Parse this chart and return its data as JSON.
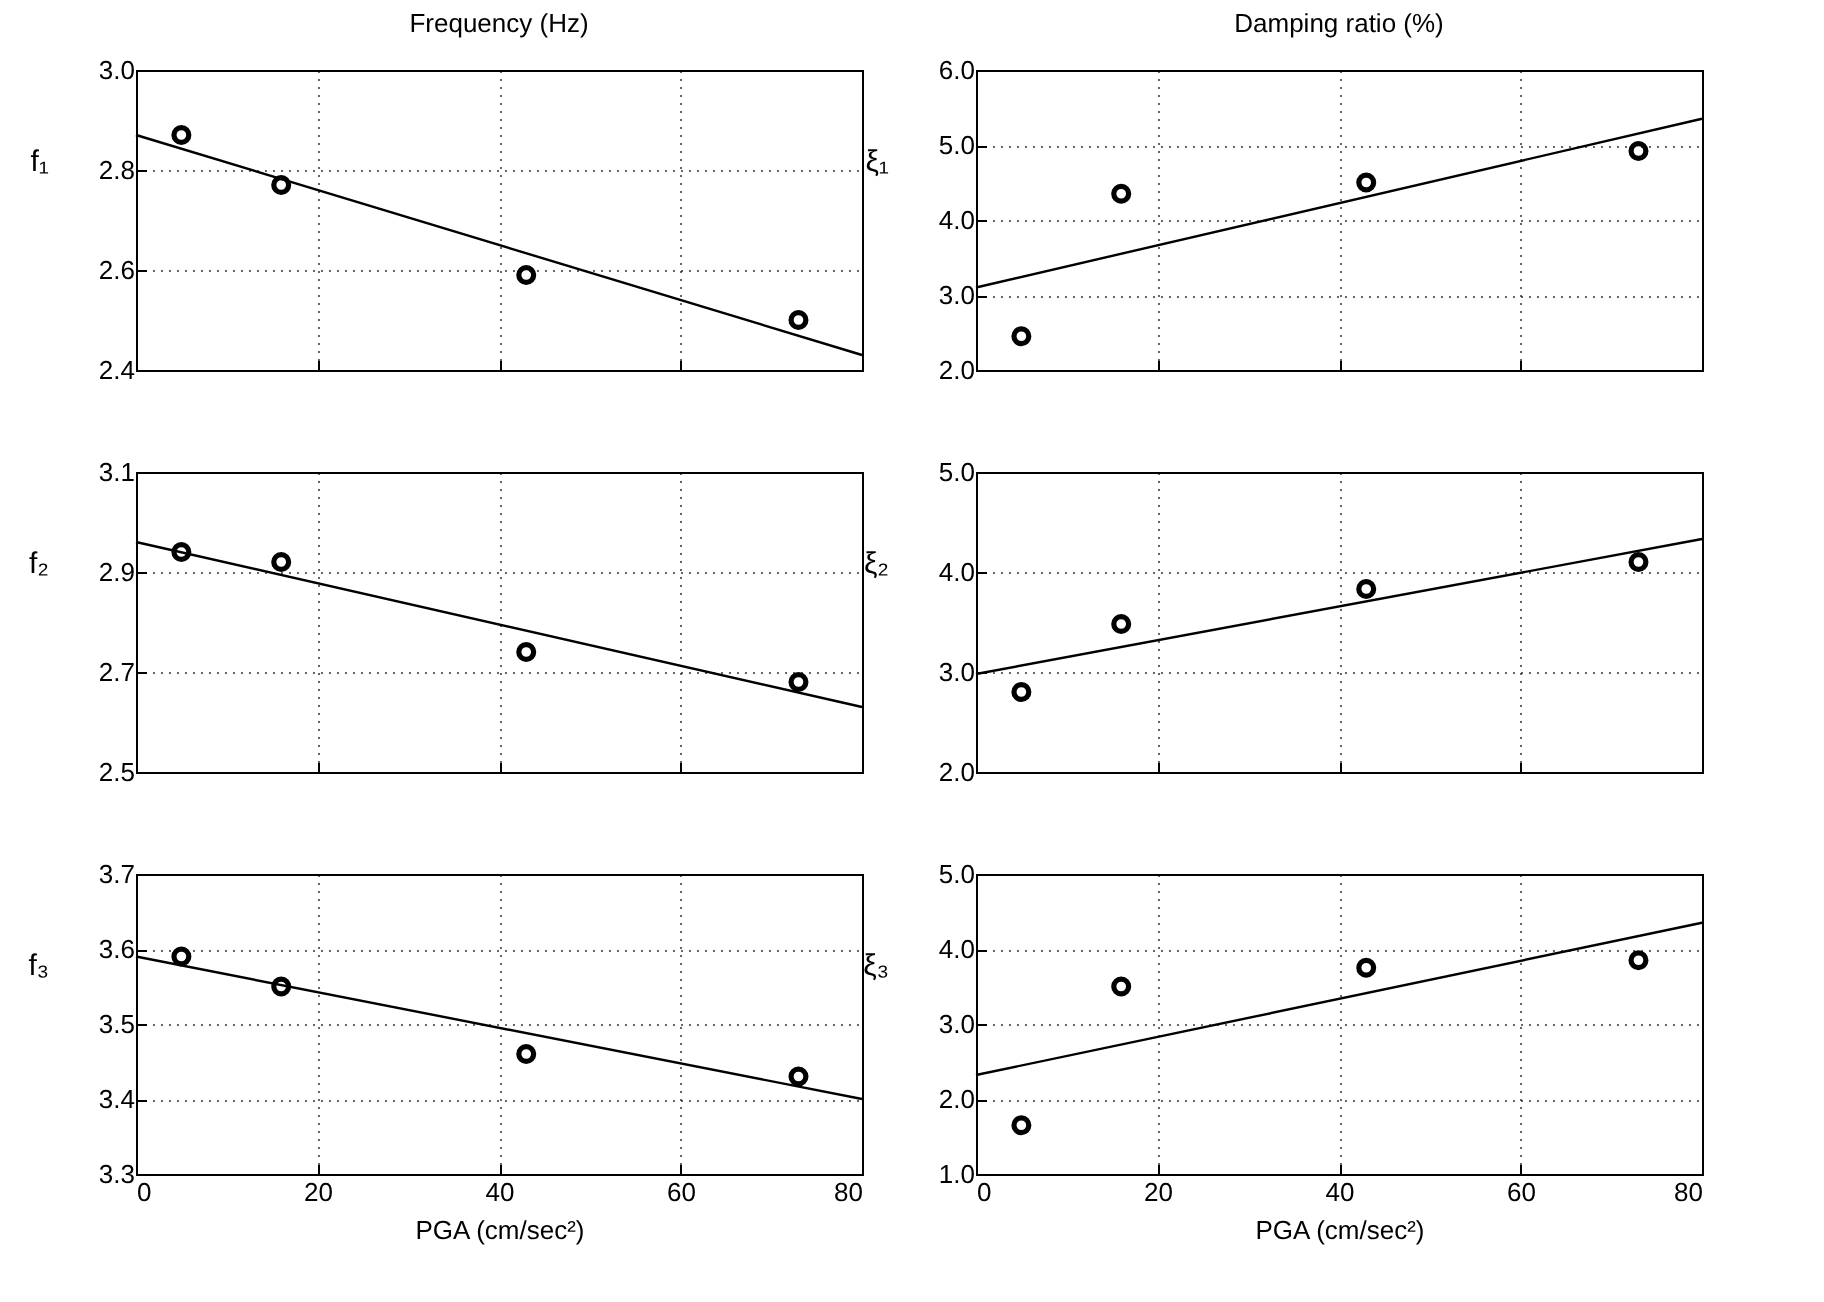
{
  "chart_data": [
    {
      "type": "scatter",
      "title": "Frequency (Hz)",
      "ylabel": "f₁",
      "xlim": [
        0,
        80
      ],
      "xticks": [
        0,
        20,
        40,
        60,
        80
      ],
      "ylim": [
        2.4,
        3.0
      ],
      "yticks": [
        2.4,
        2.6,
        2.8,
        {
          "value": 3,
          "label": "3.0"
        }
      ],
      "grid": true,
      "marker": "circle",
      "tick_labels": "y",
      "series": [
        {
          "type": "scatter",
          "color": "#000000",
          "x": [
            5,
            16,
            43,
            73
          ],
          "values": [
            2.87,
            2.77,
            2.59,
            2.5
          ]
        },
        {
          "type": "line",
          "color": "#000000",
          "marker": "none",
          "x": [
            0,
            80
          ],
          "values": [
            2.87,
            2.43
          ]
        }
      ]
    },
    {
      "type": "scatter",
      "title": "Damping ratio (%)",
      "ylabel": "ξ₁",
      "xlim": [
        0,
        80
      ],
      "xticks": [
        0,
        20,
        40,
        60,
        80
      ],
      "ylim": [
        2,
        6
      ],
      "yticks": [
        {
          "value": 2,
          "label": "2.0"
        },
        {
          "value": 3,
          "label": "3.0"
        },
        {
          "value": 4,
          "label": "4.0"
        },
        {
          "value": 5,
          "label": "5.0"
        },
        {
          "value": 6,
          "label": "6.0"
        }
      ],
      "grid": true,
      "marker": "circle",
      "tick_labels": "y",
      "series": [
        {
          "type": "scatter",
          "color": "#000000",
          "x": [
            5,
            16,
            43,
            73
          ],
          "values": [
            2.45,
            4.35,
            4.5,
            4.92
          ]
        },
        {
          "type": "line",
          "color": "#000000",
          "marker": "none",
          "x": [
            0,
            80
          ],
          "values": [
            3.1,
            5.35
          ]
        }
      ]
    },
    {
      "type": "scatter",
      "ylabel": "f₂",
      "xlim": [
        0,
        80
      ],
      "xticks": [
        0,
        20,
        40,
        60,
        80
      ],
      "ylim": [
        2.5,
        3.1
      ],
      "yticks": [
        2.5,
        2.7,
        2.9,
        3.1
      ],
      "grid": true,
      "marker": "circle",
      "tick_labels": "y",
      "series": [
        {
          "type": "scatter",
          "color": "#000000",
          "x": [
            5,
            16,
            43,
            73
          ],
          "values": [
            2.94,
            2.92,
            2.74,
            2.68
          ]
        },
        {
          "type": "line",
          "color": "#000000",
          "marker": "none",
          "x": [
            0,
            80
          ],
          "values": [
            2.96,
            2.63
          ]
        }
      ]
    },
    {
      "type": "scatter",
      "ylabel": "ξ₂",
      "xlim": [
        0,
        80
      ],
      "xticks": [
        0,
        20,
        40,
        60,
        80
      ],
      "ylim": [
        2,
        5
      ],
      "yticks": [
        {
          "value": 2,
          "label": "2.0"
        },
        {
          "value": 3,
          "label": "3.0"
        },
        {
          "value": 4,
          "label": "4.0"
        },
        {
          "value": 5,
          "label": "5.0"
        }
      ],
      "grid": true,
      "marker": "circle",
      "tick_labels": "y",
      "series": [
        {
          "type": "scatter",
          "color": "#000000",
          "x": [
            5,
            16,
            43,
            73
          ],
          "values": [
            2.8,
            3.48,
            3.83,
            4.1
          ]
        },
        {
          "type": "line",
          "color": "#000000",
          "marker": "none",
          "x": [
            0,
            80
          ],
          "values": [
            2.98,
            4.33
          ]
        }
      ]
    },
    {
      "type": "scatter",
      "xlabel": "PGA (cm/sec²)",
      "ylabel": "f₃",
      "xlim": [
        0,
        80
      ],
      "xticks": [
        0,
        20,
        40,
        60,
        80
      ],
      "ylim": [
        3.3,
        3.7
      ],
      "yticks": [
        3.3,
        3.4,
        3.5,
        3.6,
        3.7
      ],
      "grid": true,
      "marker": "circle",
      "series": [
        {
          "type": "scatter",
          "color": "#000000",
          "x": [
            5,
            16,
            43,
            73
          ],
          "values": [
            3.59,
            3.55,
            3.46,
            3.43
          ]
        },
        {
          "type": "line",
          "color": "#000000",
          "marker": "none",
          "x": [
            0,
            80
          ],
          "values": [
            3.59,
            3.4
          ]
        }
      ]
    },
    {
      "type": "scatter",
      "xlabel": "PGA (cm/sec²)",
      "ylabel": "ξ₃",
      "xlim": [
        0,
        80
      ],
      "xticks": [
        0,
        20,
        40,
        60,
        80
      ],
      "ylim": [
        1,
        5
      ],
      "yticks": [
        {
          "value": 1,
          "label": "1.0"
        },
        {
          "value": 2,
          "label": "2.0"
        },
        {
          "value": 3,
          "label": "3.0"
        },
        {
          "value": 4,
          "label": "4.0"
        },
        {
          "value": 5,
          "label": "5.0"
        }
      ],
      "grid": true,
      "marker": "circle",
      "series": [
        {
          "type": "scatter",
          "color": "#000000",
          "x": [
            5,
            16,
            43,
            73
          ],
          "values": [
            1.65,
            3.5,
            3.75,
            3.85
          ]
        },
        {
          "type": "line",
          "color": "#000000",
          "marker": "none",
          "x": [
            0,
            80
          ],
          "values": [
            2.32,
            4.35
          ]
        }
      ]
    }
  ]
}
